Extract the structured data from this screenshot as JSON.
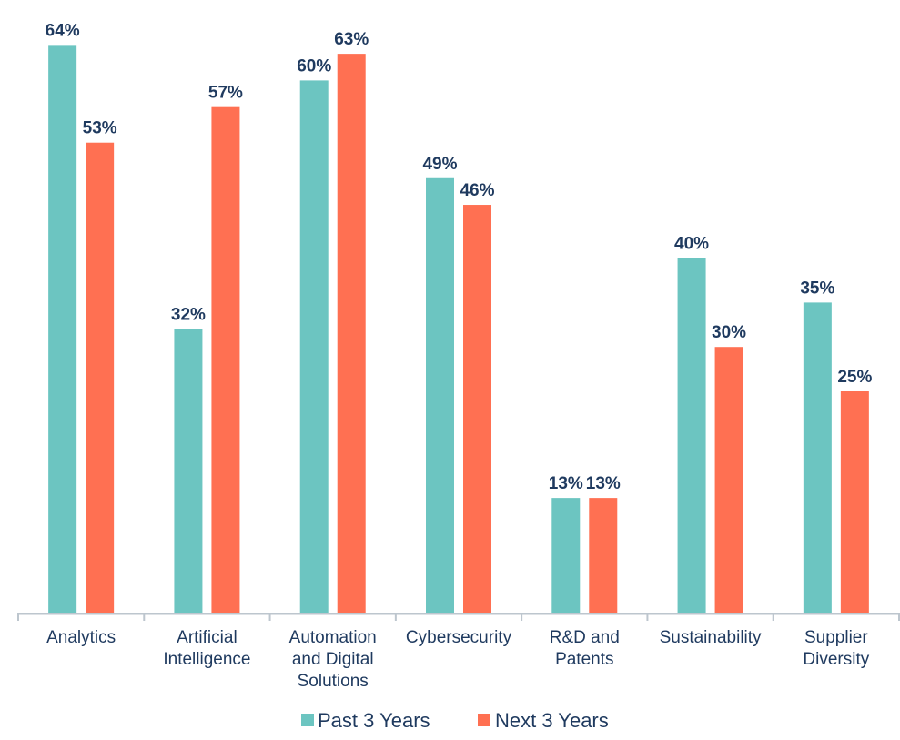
{
  "chart_data": {
    "type": "bar",
    "title": "",
    "xlabel": "",
    "ylabel": "",
    "ylim": [
      0,
      65
    ],
    "grid": false,
    "legend_position": "bottom",
    "categories": [
      [
        "Analytics"
      ],
      [
        "Artificial",
        "Intelligence"
      ],
      [
        "Automation",
        "and Digital",
        "Solutions"
      ],
      [
        "Cybersecurity"
      ],
      [
        "R&D and",
        "Patents"
      ],
      [
        "Sustainability"
      ],
      [
        "Supplier",
        "Diversity"
      ]
    ],
    "series": [
      {
        "name": "Past 3 Years",
        "values": [
          64,
          32,
          60,
          49,
          13,
          40,
          35
        ],
        "labels": [
          "64%",
          "32%",
          "60%",
          "49%",
          "13%",
          "40%",
          "35%"
        ],
        "color": "#6CC5C1"
      },
      {
        "name": "Next 3 Years",
        "values": [
          53,
          57,
          63,
          46,
          13,
          30,
          25
        ],
        "labels": [
          "53%",
          "57%",
          "63%",
          "46%",
          "13%",
          "30%",
          "25%"
        ],
        "color": "#FF7052"
      }
    ],
    "label_color": "#1F3A5F",
    "category_label_color": "#1F3A5F",
    "axis_color": "#BDC6CE"
  }
}
